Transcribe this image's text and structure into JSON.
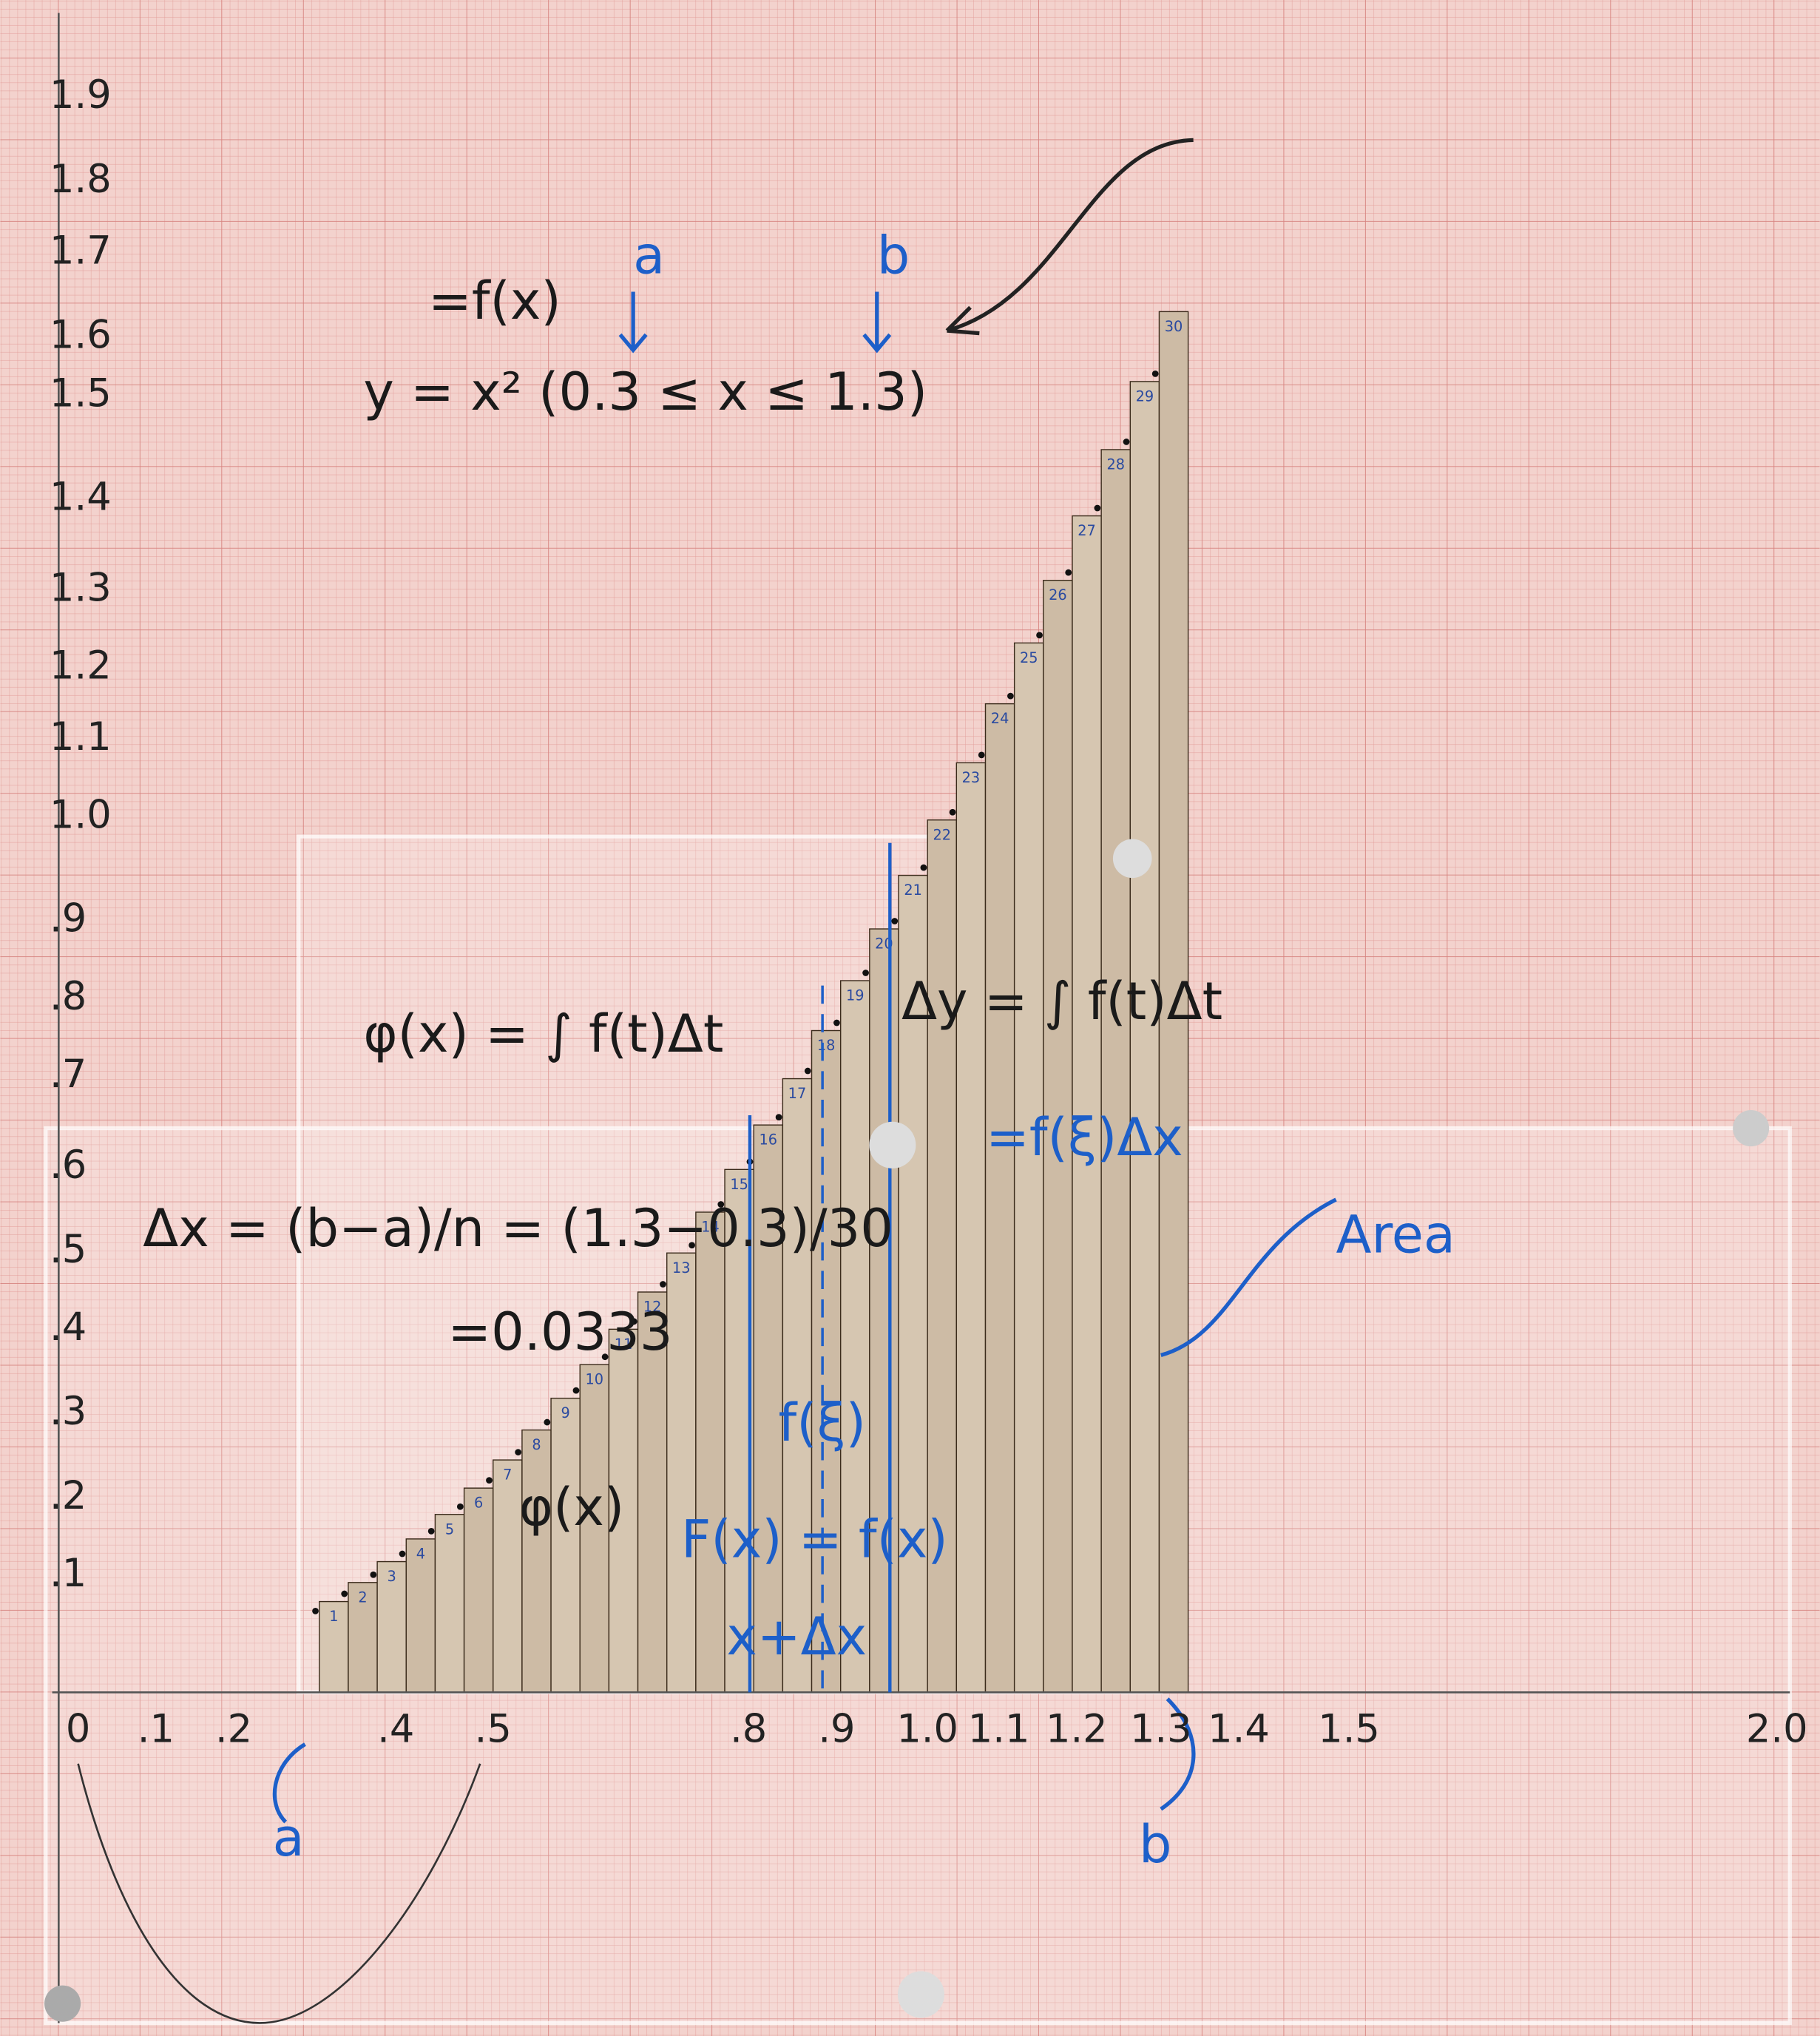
{
  "y_axis_labels": [
    ".1",
    ".2",
    ".3",
    ".4",
    ".5",
    ".6",
    ".7",
    ".8",
    ".9",
    "1.0",
    "1.1",
    "1.2",
    "1.3",
    "1.4",
    "1.5",
    "1.6",
    "1.7",
    "1.8",
    "1.9"
  ],
  "x_axis_labels": [
    "0",
    ".1",
    ".2",
    ".4",
    ".5",
    ".8",
    ".9",
    "1.0",
    "1.1",
    "1.2",
    "1.3",
    "1.4",
    "1.5",
    "2.0"
  ],
  "bar_numbers": [
    "1",
    "2",
    "3",
    "4",
    "5",
    "6",
    "7",
    "8",
    "9",
    "10",
    "11",
    "12",
    "13",
    "14",
    "15",
    "16",
    "17",
    "18",
    "19",
    "20",
    "21",
    "22",
    "23",
    "24",
    "25",
    "26",
    "27",
    "28",
    "29",
    "30"
  ],
  "annotations": {
    "function_alias": "=f(x)",
    "function": "y = x² (0.3 ≤ x ≤ 1.3)",
    "marker_a": "a",
    "marker_b": "b",
    "phi_definition": "φ(x) = ∫ f(t)Δt",
    "delta_y": "Δy = ∫ f(t)Δt",
    "delta_x": "Δx = (b−a)/n = (1.3−0.3)/30",
    "delta_x_value": "=0.0333",
    "phi": "φ(x)",
    "derivative": "F(x) = f(x)",
    "f_xi": "f(ξ)",
    "mean_value": "=f(ξ)Δx",
    "area": "Area",
    "bottom_a": "a",
    "bottom_b": "b",
    "step": "x+Δx"
  }
}
